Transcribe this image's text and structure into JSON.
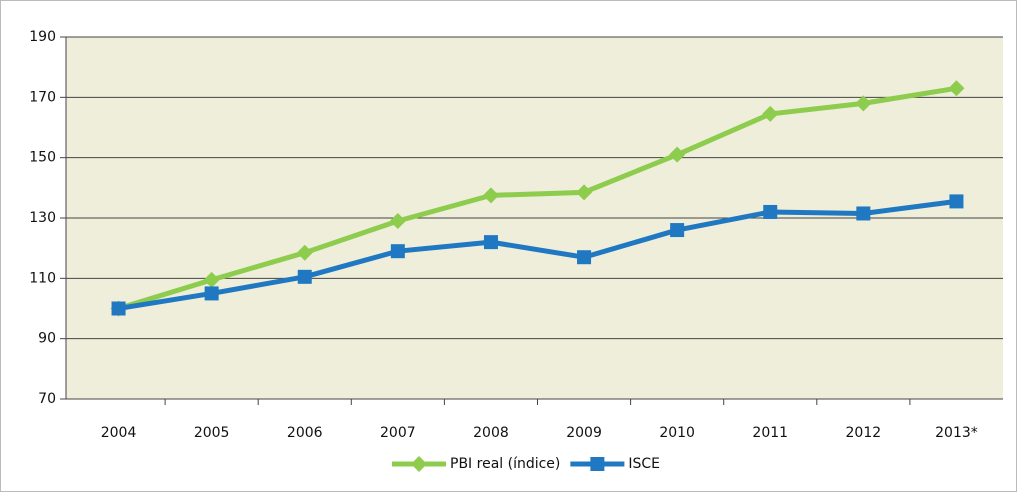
{
  "chart_data": {
    "type": "line",
    "categories": [
      "2004",
      "2005",
      "2006",
      "2007",
      "2008",
      "2009",
      "2010",
      "2011",
      "2012",
      "2013*"
    ],
    "series": [
      {
        "name": "PBI real (índice)",
        "color": "#8dcc4c",
        "marker": "diamond",
        "values": [
          100,
          109.5,
          118.5,
          129,
          137.5,
          138.5,
          151,
          164.5,
          168,
          173
        ]
      },
      {
        "name": "ISCE",
        "color": "#1f78c1",
        "marker": "square",
        "values": [
          100,
          105,
          110.5,
          119,
          122,
          117,
          126,
          132,
          131.5,
          135.5
        ]
      }
    ],
    "ylim": [
      70,
      190
    ],
    "yticks": [
      70,
      90,
      110,
      130,
      150,
      170,
      190
    ],
    "grid": true,
    "legend": "bottom"
  }
}
